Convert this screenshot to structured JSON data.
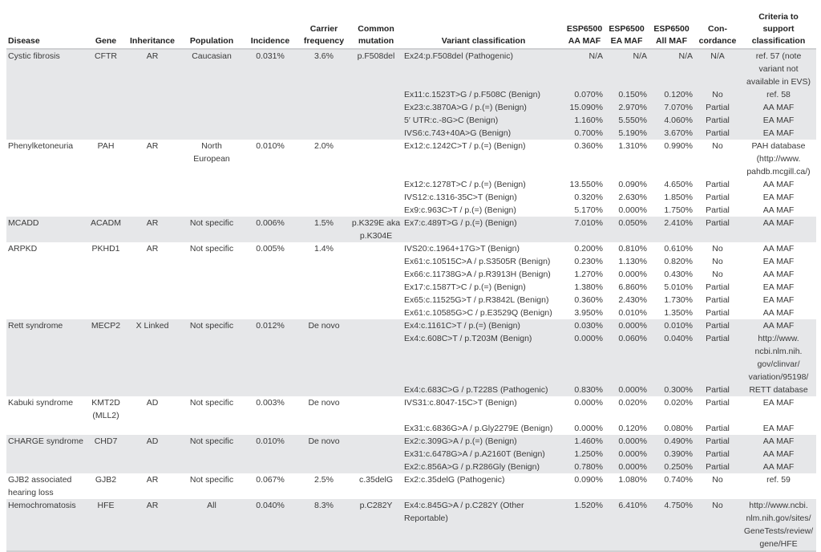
{
  "headers": {
    "disease": "Disease",
    "gene": "Gene",
    "inheritance": "Inheritance",
    "population": "Population",
    "incidence": "Incidence",
    "carrier": "Carrier frequency",
    "common": "Common mutation",
    "variant": "Variant classification",
    "aa": "ESP6500 AA MAF",
    "ea": "ESP6500 EA MAF",
    "all": "ESP6500 All MAF",
    "concordance": "Con-cordance",
    "criteria": "Criteria to support classification"
  },
  "diseases": [
    {
      "disease": "Cystic fibrosis",
      "gene": "CFTR",
      "inheritance": "AR",
      "population": "Caucasian",
      "incidence": "0.031%",
      "carrier": "3.6%",
      "common": "p.F508del",
      "shade": "gray",
      "variants": [
        {
          "variant": "Ex24:p.F508del (Pathogenic)",
          "aa": "N/A",
          "ea": "N/A",
          "all": "N/A",
          "concordance": "N/A",
          "criteria": "ref. 57 (note variant not available in EVS)"
        },
        {
          "variant": "Ex11:c.1523T>G / p.F508C (Benign)",
          "aa": "0.070%",
          "ea": "0.150%",
          "all": "0.120%",
          "concordance": "No",
          "criteria": "ref. 58"
        },
        {
          "variant": "Ex23:c.3870A>G / p.(=) (Benign)",
          "aa": "15.090%",
          "ea": "2.970%",
          "all": "7.070%",
          "concordance": "Partial",
          "criteria": "AA MAF"
        },
        {
          "variant": "5′ UTR:c.-8G>C (Benign)",
          "aa": "1.160%",
          "ea": "5.550%",
          "all": "4.060%",
          "concordance": "Partial",
          "criteria": "EA MAF"
        },
        {
          "variant": "IVS6:c.743+40A>G (Benign)",
          "aa": "0.700%",
          "ea": "5.190%",
          "all": "3.670%",
          "concordance": "Partial",
          "criteria": "EA MAF"
        }
      ]
    },
    {
      "disease": "Phenylketoneuria",
      "gene": "PAH",
      "inheritance": "AR",
      "population": "North European",
      "incidence": "0.010%",
      "carrier": "2.0%",
      "common": "",
      "shade": "white",
      "variants": [
        {
          "variant": "Ex12:c.1242C>T / p.(=) (Benign)",
          "aa": "0.360%",
          "ea": "1.310%",
          "all": "0.990%",
          "concordance": "No",
          "criteria": "PAH database (http://www. pahdb.mcgill.ca/)"
        },
        {
          "variant": "Ex12:c.1278T>C / p.(=) (Benign)",
          "aa": "13.550%",
          "ea": "0.090%",
          "all": "4.650%",
          "concordance": "Partial",
          "criteria": "AA MAF"
        },
        {
          "variant": "IVS12:c.1316-35C>T (Benign)",
          "aa": "0.320%",
          "ea": "2.630%",
          "all": "1.850%",
          "concordance": "Partial",
          "criteria": "EA MAF"
        },
        {
          "variant": "Ex9:c.963C>T / p.(=) (Benign)",
          "aa": "5.170%",
          "ea": "0.000%",
          "all": "1.750%",
          "concordance": "Partial",
          "criteria": "AA MAF"
        }
      ]
    },
    {
      "disease": "MCADD",
      "gene": "ACADM",
      "inheritance": "AR",
      "population": "Not specific",
      "incidence": "0.006%",
      "carrier": "1.5%",
      "common": "p.K329E aka p.K304E",
      "shade": "gray",
      "variants": [
        {
          "variant": "Ex7:c.489T>G / p.(=) (Benign)",
          "aa": "7.010%",
          "ea": "0.050%",
          "all": "2.410%",
          "concordance": "Partial",
          "criteria": "AA MAF"
        }
      ]
    },
    {
      "disease": "ARPKD",
      "gene": "PKHD1",
      "inheritance": "AR",
      "population": "Not specific",
      "incidence": "0.005%",
      "carrier": "1.4%",
      "common": "",
      "shade": "white",
      "variants": [
        {
          "variant": "IVS20:c.1964+17G>T (Benign)",
          "aa": "0.200%",
          "ea": "0.810%",
          "all": "0.610%",
          "concordance": "No",
          "criteria": "AA MAF"
        },
        {
          "variant": "Ex61:c.10515C>A / p.S3505R (Benign)",
          "aa": "0.230%",
          "ea": "1.130%",
          "all": "0.820%",
          "concordance": "No",
          "criteria": "EA MAF"
        },
        {
          "variant": "Ex66:c.11738G>A / p.R3913H (Benign)",
          "aa": "1.270%",
          "ea": "0.000%",
          "all": "0.430%",
          "concordance": "No",
          "criteria": "AA MAF"
        },
        {
          "variant": "Ex17:c.1587T>C / p.(=) (Benign)",
          "aa": "1.380%",
          "ea": "6.860%",
          "all": "5.010%",
          "concordance": "Partial",
          "criteria": "EA MAF"
        },
        {
          "variant": "Ex65:c.11525G>T / p.R3842L (Benign)",
          "aa": "0.360%",
          "ea": "2.430%",
          "all": "1.730%",
          "concordance": "Partial",
          "criteria": "EA MAF"
        },
        {
          "variant": "Ex61:c.10585G>C / p.E3529Q (Benign)",
          "aa": "3.950%",
          "ea": "0.010%",
          "all": "1.350%",
          "concordance": "Partial",
          "criteria": "AA MAF"
        }
      ]
    },
    {
      "disease": "Rett syndrome",
      "gene": "MECP2",
      "inheritance": "X Linked",
      "population": "Not specific",
      "incidence": "0.012%",
      "carrier": "De novo",
      "common": "",
      "shade": "gray",
      "variants": [
        {
          "variant": "Ex4:c.1161C>T / p.(=) (Benign)",
          "aa": "0.030%",
          "ea": "0.000%",
          "all": "0.010%",
          "concordance": "Partial",
          "criteria": "AA MAF"
        },
        {
          "variant": "Ex4:c.608C>T / p.T203M (Benign)",
          "aa": "0.000%",
          "ea": "0.060%",
          "all": "0.040%",
          "concordance": "Partial",
          "criteria": "http://www. ncbi.nlm.nih. gov/clinvar/ variation/95198/"
        },
        {
          "variant": "Ex4:c.683C>G / p.T228S (Pathogenic)",
          "aa": "0.830%",
          "ea": "0.000%",
          "all": "0.300%",
          "concordance": "Partial",
          "criteria": "RETT database"
        }
      ]
    },
    {
      "disease": "Kabuki syndrome",
      "gene": "KMT2D (MLL2)",
      "inheritance": "AD",
      "population": "Not specific",
      "incidence": "0.003%",
      "carrier": "De novo",
      "common": "",
      "shade": "white",
      "variants": [
        {
          "variant": "IVS31:c.8047-15C>T (Benign)",
          "aa": "0.000%",
          "ea": "0.020%",
          "all": "0.020%",
          "concordance": "Partial",
          "criteria": "EA MAF"
        },
        {
          "variant": "Ex31:c.6836G>A / p.Gly2279E (Benign)",
          "aa": "0.000%",
          "ea": "0.120%",
          "all": "0.080%",
          "concordance": "Partial",
          "criteria": "EA MAF"
        }
      ]
    },
    {
      "disease": "CHARGE syndrome",
      "gene": "CHD7",
      "inheritance": "AD",
      "population": "Not specific",
      "incidence": "0.010%",
      "carrier": "De novo",
      "common": "",
      "shade": "gray",
      "variants": [
        {
          "variant": "Ex2:c.309G>A / p.(=) (Benign)",
          "aa": "1.460%",
          "ea": "0.000%",
          "all": "0.490%",
          "concordance": "Partial",
          "criteria": "AA MAF"
        },
        {
          "variant": "Ex31:c.6478G>A / p.A2160T (Benign)",
          "aa": "1.250%",
          "ea": "0.000%",
          "all": "0.390%",
          "concordance": "Partial",
          "criteria": "AA MAF"
        },
        {
          "variant": "Ex2:c.856A>G / p.R286Gly (Benign)",
          "aa": "0.780%",
          "ea": "0.000%",
          "all": "0.250%",
          "concordance": "Partial",
          "criteria": "AA MAF"
        }
      ]
    },
    {
      "disease": "GJB2 associated hearing loss",
      "gene": "GJB2",
      "inheritance": "AR",
      "population": "Not specific",
      "incidence": "0.067%",
      "carrier": "2.5%",
      "common": "c.35delG",
      "shade": "white",
      "variants": [
        {
          "variant": "Ex2:c.35delG (Pathogenic)",
          "aa": "0.090%",
          "ea": "1.080%",
          "all": "0.740%",
          "concordance": "No",
          "criteria": "ref. 59"
        }
      ]
    },
    {
      "disease": "Hemochromatosis",
      "gene": "HFE",
      "inheritance": "AR",
      "population": "All",
      "incidence": "0.040%",
      "carrier": "8.3%",
      "common": "p.C282Y",
      "shade": "gray",
      "variants": [
        {
          "variant": "Ex4:c.845G>A / p.C282Y (Other Reportable)",
          "aa": "1.520%",
          "ea": "6.410%",
          "all": "4.750%",
          "concordance": "No",
          "criteria": "http://www.ncbi. nlm.nih.gov/sites/ GeneTests/review/ gene/HFE"
        }
      ]
    }
  ]
}
